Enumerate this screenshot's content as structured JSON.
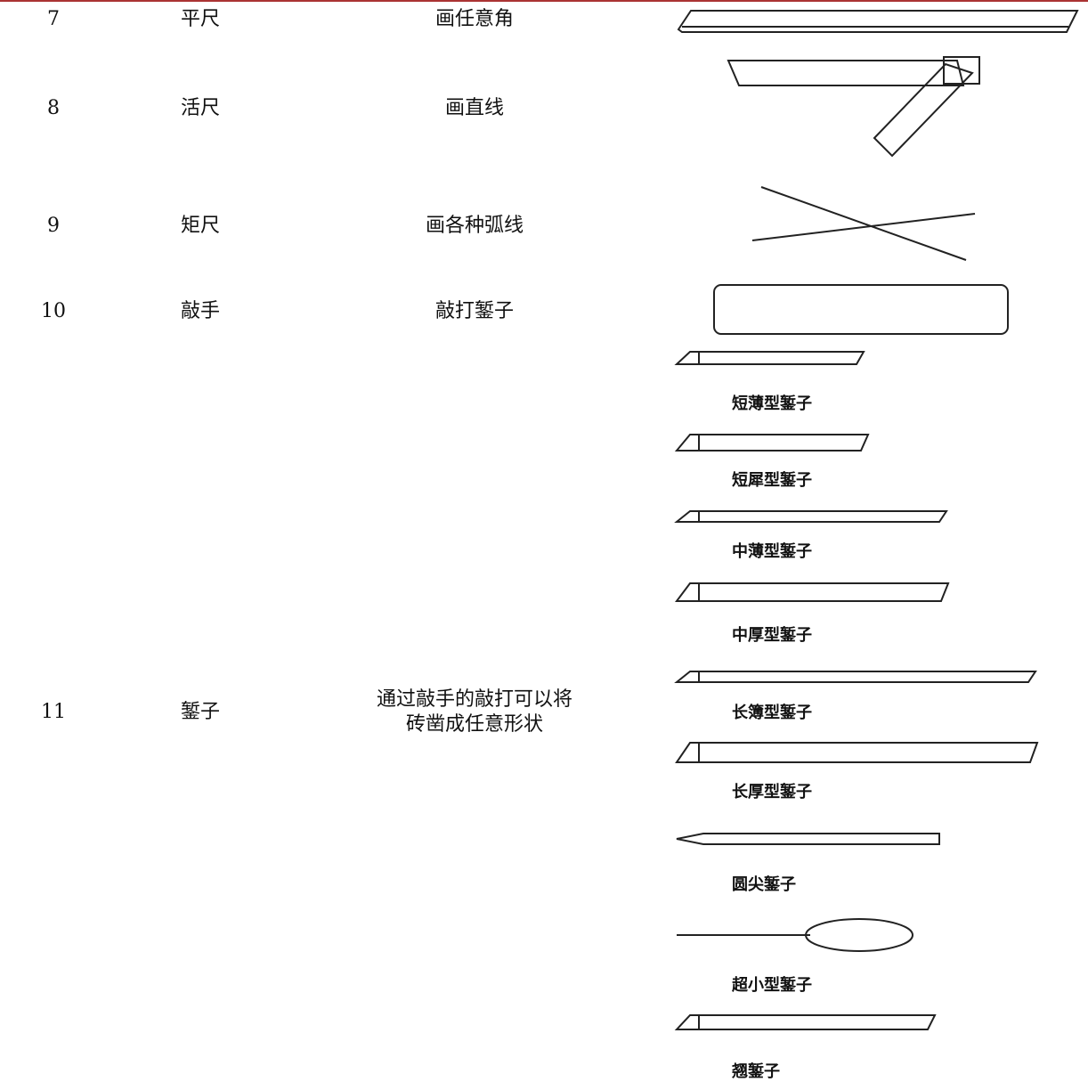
{
  "table": {
    "rows": [
      {
        "no": "7",
        "name": "平尺",
        "use": [
          "画任意角"
        ]
      },
      {
        "no": "8",
        "name": "活尺",
        "use": [
          "画直线"
        ]
      },
      {
        "no": "9",
        "name": "矩尺",
        "use": [
          "画各种弧线"
        ]
      },
      {
        "no": "10",
        "name": "敲手",
        "use": [
          "敲打錾子"
        ]
      },
      {
        "no": "11",
        "name": "錾子",
        "use": [
          "通过敲手的敲打可以将",
          "砖凿成任意形状"
        ]
      }
    ]
  },
  "chisels": [
    "短薄型錾子",
    "短犀型錾子",
    "中薄型錾子",
    "中厚型錾子",
    "长簿型錾子",
    "长厚型錾子",
    "圆尖錾子",
    "超小型錾子",
    "翘錾子"
  ]
}
